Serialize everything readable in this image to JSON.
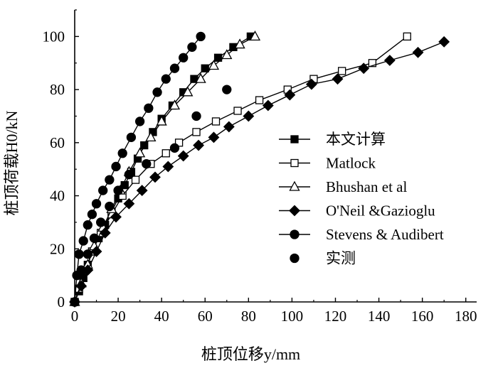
{
  "chart_data": {
    "type": "line",
    "title": "",
    "xlabel": "桩顶位移y/mm",
    "ylabel": "桩顶荷载H0/kN",
    "xlim": [
      0,
      185
    ],
    "ylim": [
      0,
      110
    ],
    "xticks": [
      0,
      20,
      40,
      60,
      80,
      100,
      120,
      140,
      160,
      180
    ],
    "yticks": [
      0,
      20,
      40,
      60,
      80,
      100
    ],
    "grid": false,
    "legend_position": "right",
    "series": [
      {
        "name": "本文计算",
        "marker": "square-filled",
        "line": true,
        "x": [
          0,
          2,
          4,
          6,
          8,
          11,
          14,
          17,
          20,
          23,
          26,
          29,
          32,
          36,
          40,
          45,
          50,
          55,
          60,
          66,
          73,
          81
        ],
        "y": [
          0,
          4,
          9,
          14,
          19,
          24,
          29,
          34,
          39,
          44,
          49,
          54,
          59,
          64,
          69,
          74,
          79,
          84,
          88,
          92,
          96,
          100
        ]
      },
      {
        "name": "Matlock",
        "marker": "square-open",
        "line": true,
        "x": [
          0,
          2,
          5,
          8,
          12,
          17,
          22,
          28,
          35,
          42,
          48,
          56,
          65,
          75,
          85,
          98,
          110,
          123,
          137,
          153
        ],
        "y": [
          0,
          5,
          12,
          19,
          26,
          33,
          40,
          46,
          52,
          56,
          60,
          64,
          68,
          72,
          76,
          80,
          84,
          87,
          90,
          100
        ]
      },
      {
        "name": "Bhushan et al",
        "marker": "triangle-open",
        "line": true,
        "x": [
          0,
          3,
          6,
          9,
          13,
          17,
          21,
          25,
          30,
          35,
          40,
          46,
          52,
          58,
          64,
          70,
          76,
          83
        ],
        "y": [
          0,
          7,
          14,
          21,
          28,
          35,
          42,
          49,
          56,
          62,
          68,
          74,
          79,
          84,
          89,
          93,
          97,
          100
        ]
      },
      {
        "name": "O'Neil &Gazioglu",
        "marker": "diamond-filled",
        "line": true,
        "x": [
          0,
          3,
          6,
          10,
          14,
          19,
          25,
          31,
          37,
          43,
          50,
          57,
          64,
          71,
          80,
          89,
          99,
          109,
          121,
          133,
          145,
          158,
          170
        ],
        "y": [
          0,
          6,
          12,
          19,
          26,
          32,
          37,
          42,
          47,
          51,
          55,
          59,
          62,
          66,
          70,
          74,
          78,
          82,
          84,
          88,
          91,
          94,
          98
        ]
      },
      {
        "name": "Stevens & Audibert",
        "marker": "circle-filled",
        "line": true,
        "x": [
          0,
          1,
          2,
          4,
          6,
          8,
          10,
          13,
          16,
          19,
          22,
          26,
          30,
          34,
          38,
          42,
          46,
          50,
          54,
          58
        ],
        "y": [
          0,
          10,
          18,
          23,
          29,
          33,
          37,
          42,
          46,
          51,
          56,
          62,
          68,
          73,
          79,
          84,
          88,
          92,
          96,
          100
        ]
      },
      {
        "name": "实测",
        "marker": "circle-filled",
        "line": false,
        "x": [
          0,
          3,
          6,
          9,
          12,
          16,
          20,
          25,
          33,
          46,
          56,
          70
        ],
        "y": [
          0,
          12,
          18,
          24,
          30,
          36,
          42,
          48,
          52,
          58,
          70,
          80
        ]
      }
    ]
  }
}
